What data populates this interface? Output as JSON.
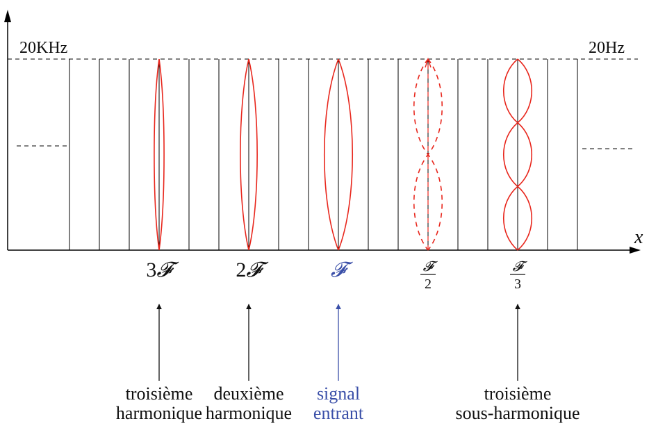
{
  "axis": {
    "x_label": "x"
  },
  "frequency_labels": {
    "high": "20KHz",
    "low": "20Hz"
  },
  "colors": {
    "wave": "#e8261c",
    "accent": "#3a4fa8",
    "line": "#000000",
    "text": "#111111"
  },
  "markers": [
    {
      "id": "third-harmonic",
      "prefix": "3",
      "symbol": "𝓕",
      "fraction": false,
      "color": "#111111",
      "wave_dashed": false,
      "nodes": 1,
      "amplitude_level": 1,
      "caption": [
        "troisième",
        "harmonique"
      ]
    },
    {
      "id": "second-harmonic",
      "prefix": "2",
      "symbol": "𝓕",
      "fraction": false,
      "color": "#111111",
      "wave_dashed": false,
      "nodes": 1,
      "amplitude_level": 2,
      "caption": [
        "deuxième",
        "harmonique"
      ]
    },
    {
      "id": "input-signal",
      "prefix": "",
      "symbol": "𝓕",
      "fraction": false,
      "color": "#3a4fa8",
      "wave_dashed": false,
      "nodes": 1,
      "amplitude_level": 3,
      "caption": [
        "signal",
        "entrant"
      ]
    },
    {
      "id": "second-subharmonic",
      "prefix": "",
      "symbol": "𝓕",
      "fraction": true,
      "denominator": "2",
      "color": "#111111",
      "wave_dashed": true,
      "nodes": 2,
      "amplitude_level": 3,
      "caption": []
    },
    {
      "id": "third-subharmonic",
      "prefix": "",
      "symbol": "𝓕",
      "fraction": true,
      "denominator": "3",
      "color": "#111111",
      "wave_dashed": false,
      "nodes": 3,
      "amplitude_level": 3,
      "caption": [
        "troisième",
        "sous-harmonique"
      ]
    }
  ]
}
